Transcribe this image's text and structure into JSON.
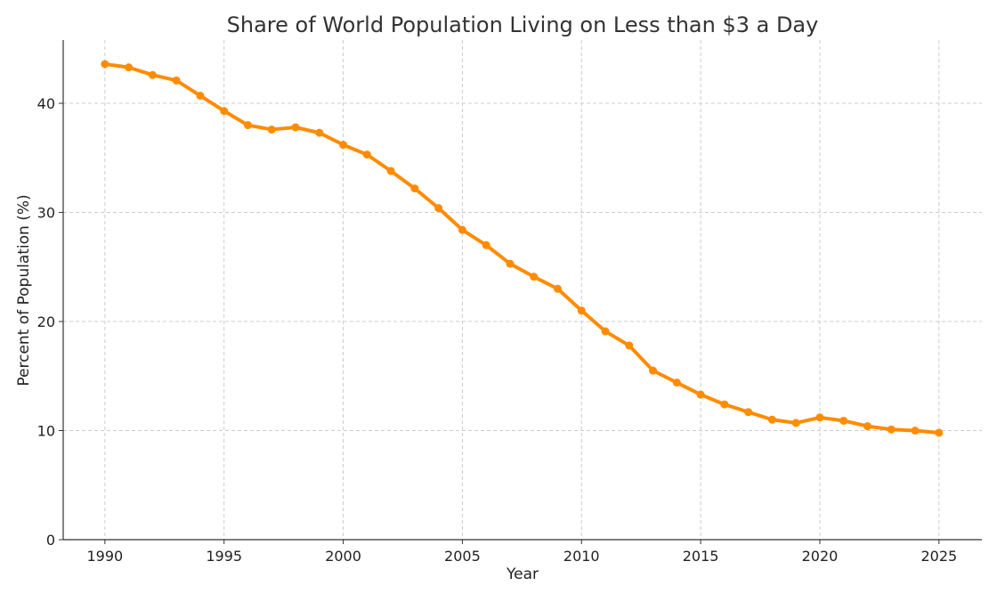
{
  "chart_data": {
    "type": "line",
    "title": "Share of World Population Living on Less than $3 a Day",
    "xlabel": "Year",
    "ylabel": "Percent of Population (%)",
    "x": [
      1990,
      1991,
      1992,
      1993,
      1994,
      1995,
      1996,
      1997,
      1998,
      1999,
      2000,
      2001,
      2002,
      2003,
      2004,
      2005,
      2006,
      2007,
      2008,
      2009,
      2010,
      2011,
      2012,
      2013,
      2014,
      2015,
      2016,
      2017,
      2018,
      2019,
      2020,
      2021,
      2022,
      2023,
      2024,
      2025
    ],
    "series": [
      {
        "values": [
          43.6,
          43.3,
          42.6,
          42.1,
          40.7,
          39.3,
          38.0,
          37.6,
          37.8,
          37.3,
          36.2,
          35.3,
          33.8,
          32.2,
          30.4,
          28.4,
          27.0,
          25.3,
          24.1,
          23.0,
          21.0,
          19.1,
          17.8,
          15.5,
          14.4,
          13.3,
          12.4,
          11.7,
          11.0,
          10.7,
          11.2,
          10.9,
          10.4,
          10.1,
          10.0,
          9.8
        ],
        "color": "#FF8C00"
      }
    ],
    "xticks": [
      "1990",
      "1995",
      "2000",
      "2005",
      "2010",
      "2015",
      "2020",
      "2025"
    ],
    "yticks": [
      "0",
      "10",
      "20",
      "30",
      "40"
    ],
    "xlim": [
      1988.25,
      2026.8
    ],
    "ylim": [
      0,
      45.8
    ],
    "grid": true,
    "markers": true
  }
}
